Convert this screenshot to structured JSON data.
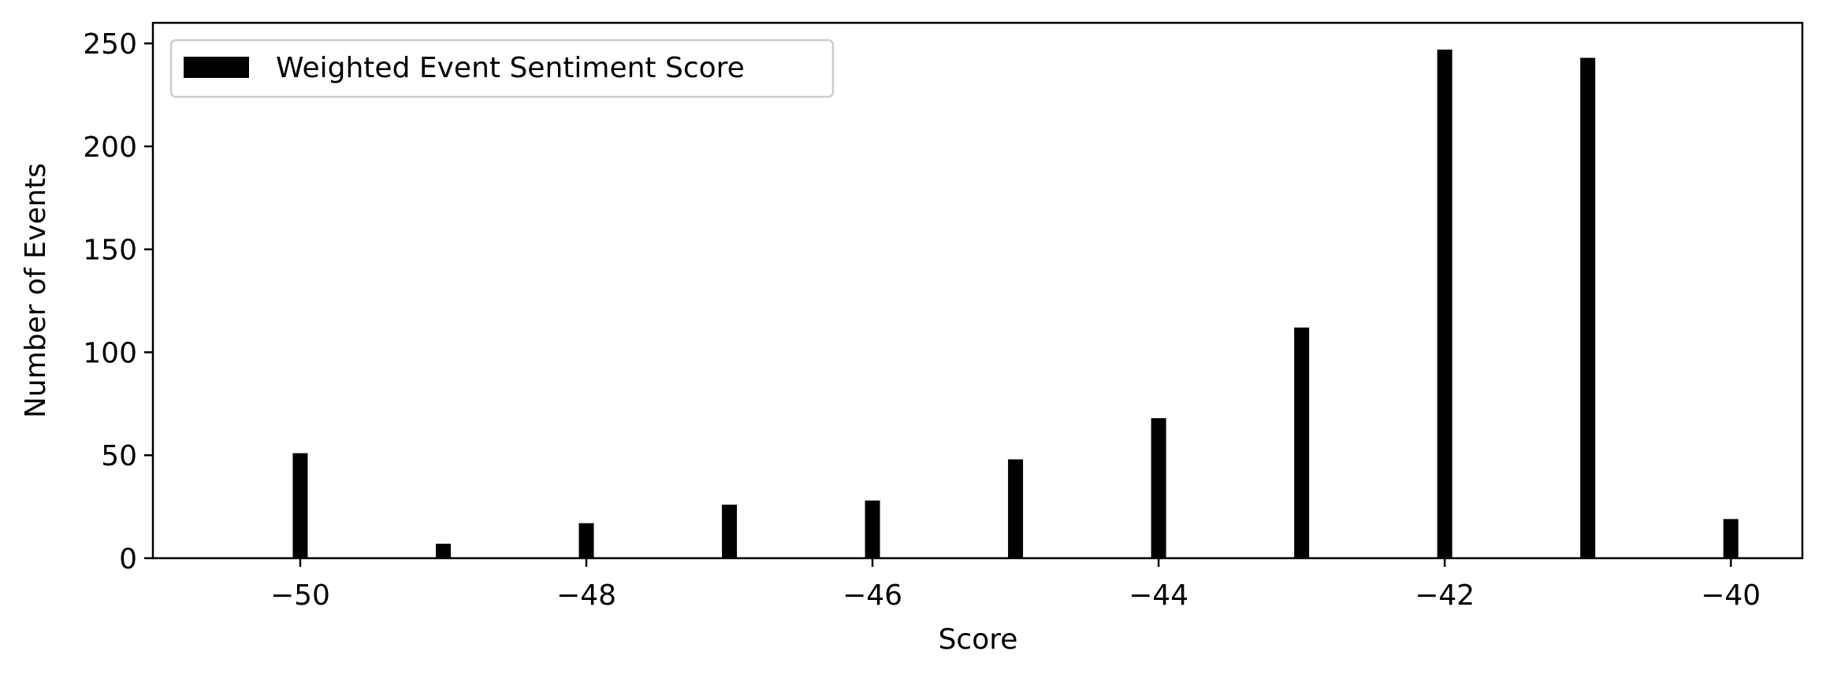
{
  "chart_data": {
    "type": "bar",
    "title": "",
    "xlabel": "Score",
    "ylabel": "Number of Events",
    "x_ticks": [
      -50,
      -48,
      -46,
      -44,
      -42,
      -40
    ],
    "x_tick_labels": [
      "−50",
      "−48",
      "−46",
      "−44",
      "−42",
      "−40"
    ],
    "y_ticks": [
      0,
      50,
      100,
      150,
      200,
      250
    ],
    "y_tick_labels": [
      "0",
      "50",
      "100",
      "150",
      "200",
      "250"
    ],
    "xlim": [
      -51.03,
      -39.5
    ],
    "ylim": [
      0,
      260
    ],
    "grid": false,
    "legend_position": "upper-left",
    "series": [
      {
        "name": "Weighted Event Sentiment Score",
        "color": "#000000",
        "x": [
          -50,
          -49,
          -48,
          -47,
          -46,
          -45,
          -44,
          -43,
          -42,
          -41,
          -40
        ],
        "values": [
          51,
          7,
          17,
          26,
          28,
          48,
          68,
          112,
          247,
          243,
          19
        ]
      }
    ]
  }
}
